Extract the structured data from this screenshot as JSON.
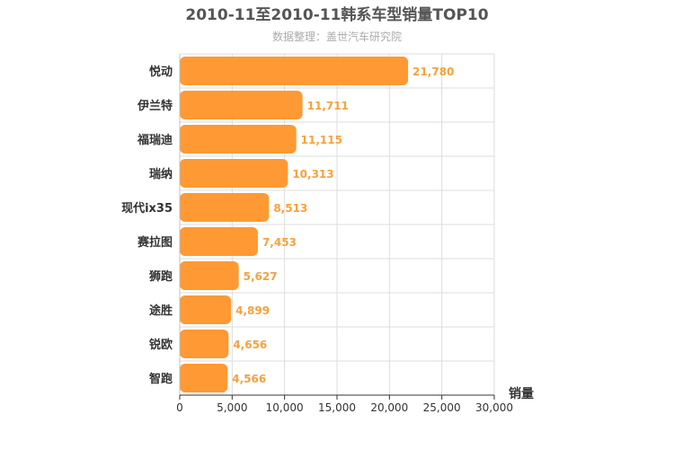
{
  "chart_data": {
    "type": "bar",
    "orientation": "horizontal",
    "title": "2010-11至2010-11韩系车型销量TOP10",
    "subtitle": "数据整理：盖世汽车研究院",
    "categories": [
      "悦动",
      "伊兰特",
      "福瑞迪",
      "瑞纳",
      "现代ix35",
      "赛拉图",
      "狮跑",
      "途胜",
      "锐欧",
      "智跑"
    ],
    "values": [
      21780,
      11711,
      11115,
      10313,
      8513,
      7453,
      5627,
      4899,
      4656,
      4566
    ],
    "value_labels": [
      "21,780",
      "11,711",
      "11,115",
      "10,313",
      "8,513",
      "7,453",
      "5,627",
      "4,899",
      "4,656",
      "4,566"
    ],
    "xlabel": "",
    "ylabel": "销量",
    "xlim": [
      0,
      30000
    ],
    "ticks": [
      0,
      5000,
      10000,
      15000,
      20000,
      25000,
      30000
    ],
    "tick_labels": [
      "0",
      "5,000",
      "10,000",
      "15,000",
      "20,000",
      "25,000",
      "30,000"
    ],
    "grid": true,
    "bar_color": "#ff9933",
    "label_color": "#f7a13c"
  }
}
